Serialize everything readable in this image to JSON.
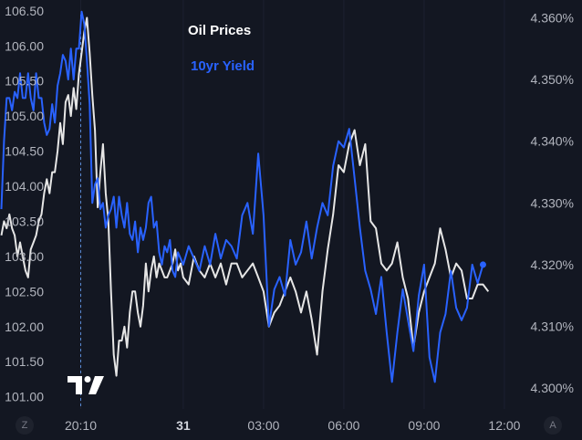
{
  "chart_data": {
    "type": "line",
    "legend": [
      {
        "name": "Oil Prices",
        "color": "#e6e6e6"
      },
      {
        "name": "10yr Yield",
        "color": "#2962ff"
      }
    ],
    "left_axis": {
      "ticks": [
        "106.50",
        "106.00",
        "105.50",
        "105.00",
        "104.50",
        "104.00",
        "103.50",
        "103.00",
        "102.50",
        "102.00",
        "101.50",
        "101.00"
      ],
      "range": [
        100.93,
        106.55
      ]
    },
    "right_axis": {
      "ticks": [
        "4.360%",
        "4.350%",
        "4.340%",
        "4.330%",
        "4.320%",
        "4.310%",
        "4.300%"
      ],
      "range": [
        4.2978,
        4.3617
      ]
    },
    "x_axis": {
      "ticks": [
        {
          "label": "20:10",
          "t": 20.1667,
          "bold": false
        },
        {
          "label": "31",
          "t": 24,
          "bold": true
        },
        {
          "label": "03:00",
          "t": 27,
          "bold": false
        },
        {
          "label": "06:00",
          "t": 30,
          "bold": false
        },
        {
          "label": "09:00",
          "t": 33,
          "bold": false
        },
        {
          "label": "12:00",
          "t": 36,
          "bold": false
        }
      ],
      "range": [
        17.15,
        38.9
      ],
      "crosshair_t": 20.1667
    },
    "series": [
      {
        "name": "Oil Prices",
        "axis": "left",
        "color": "#e6e6e6",
        "points": [
          [
            17.2,
            103.3
          ],
          [
            17.3,
            103.5
          ],
          [
            17.4,
            103.4
          ],
          [
            17.5,
            103.6
          ],
          [
            17.6,
            103.4
          ],
          [
            17.7,
            103.3
          ],
          [
            17.8,
            103.0
          ],
          [
            17.9,
            103.2
          ],
          [
            18.0,
            103.0
          ],
          [
            18.1,
            102.8
          ],
          [
            18.2,
            102.7
          ],
          [
            18.3,
            103.1
          ],
          [
            18.4,
            103.2
          ],
          [
            18.5,
            103.3
          ],
          [
            18.6,
            103.5
          ],
          [
            18.7,
            103.6
          ],
          [
            18.8,
            103.9
          ],
          [
            18.9,
            104.1
          ],
          [
            19.0,
            103.9
          ],
          [
            19.1,
            104.2
          ],
          [
            19.2,
            104.2
          ],
          [
            19.3,
            104.5
          ],
          [
            19.4,
            104.9
          ],
          [
            19.5,
            104.6
          ],
          [
            19.6,
            105.2
          ],
          [
            19.7,
            105.3
          ],
          [
            19.8,
            105.0
          ],
          [
            19.9,
            105.4
          ],
          [
            20.0,
            105.1
          ],
          [
            20.1,
            105.6
          ],
          [
            20.2,
            105.9
          ],
          [
            20.3,
            106.2
          ],
          [
            20.4,
            106.4
          ],
          [
            20.5,
            105.9
          ],
          [
            20.6,
            105.3
          ],
          [
            20.7,
            104.8
          ],
          [
            20.8,
            103.7
          ],
          [
            20.9,
            104.2
          ],
          [
            21.0,
            104.6
          ],
          [
            21.1,
            103.9
          ],
          [
            21.2,
            103.5
          ],
          [
            21.3,
            102.5
          ],
          [
            21.4,
            101.6
          ],
          [
            21.5,
            101.3
          ],
          [
            21.6,
            101.8
          ],
          [
            21.7,
            101.8
          ],
          [
            21.8,
            102.0
          ],
          [
            21.9,
            101.7
          ],
          [
            22.0,
            102.2
          ],
          [
            22.1,
            102.5
          ],
          [
            22.2,
            102.5
          ],
          [
            22.3,
            102.2
          ],
          [
            22.4,
            102.0
          ],
          [
            22.5,
            102.3
          ],
          [
            22.6,
            102.9
          ],
          [
            22.7,
            102.5
          ],
          [
            22.8,
            102.8
          ],
          [
            22.9,
            103.0
          ],
          [
            23.0,
            102.7
          ],
          [
            23.1,
            102.9
          ],
          [
            23.2,
            102.8
          ],
          [
            23.3,
            102.7
          ],
          [
            23.4,
            102.7
          ],
          [
            23.5,
            102.8
          ],
          [
            23.6,
            102.9
          ],
          [
            23.7,
            103.1
          ],
          [
            23.8,
            102.8
          ],
          [
            23.9,
            102.9
          ],
          [
            24.0,
            102.7
          ],
          [
            24.2,
            102.6
          ],
          [
            24.4,
            103.0
          ],
          [
            24.6,
            102.8
          ],
          [
            24.8,
            102.7
          ],
          [
            25.0,
            102.9
          ],
          [
            25.2,
            102.7
          ],
          [
            25.4,
            102.9
          ],
          [
            25.6,
            102.6
          ],
          [
            25.8,
            102.9
          ],
          [
            26.0,
            102.9
          ],
          [
            26.2,
            102.7
          ],
          [
            26.4,
            102.8
          ],
          [
            26.6,
            102.9
          ],
          [
            26.8,
            102.7
          ],
          [
            27.0,
            102.5
          ],
          [
            27.2,
            102.0
          ],
          [
            27.4,
            102.2
          ],
          [
            27.6,
            102.3
          ],
          [
            27.8,
            102.5
          ],
          [
            28.0,
            102.7
          ],
          [
            28.2,
            102.5
          ],
          [
            28.4,
            102.2
          ],
          [
            28.6,
            102.5
          ],
          [
            28.8,
            102.1
          ],
          [
            29.0,
            101.6
          ],
          [
            29.2,
            102.5
          ],
          [
            29.4,
            103.1
          ],
          [
            29.6,
            103.6
          ],
          [
            29.8,
            104.3
          ],
          [
            30.0,
            104.2
          ],
          [
            30.2,
            104.6
          ],
          [
            30.4,
            104.8
          ],
          [
            30.6,
            104.3
          ],
          [
            30.8,
            104.6
          ],
          [
            31.0,
            103.5
          ],
          [
            31.2,
            103.4
          ],
          [
            31.4,
            102.9
          ],
          [
            31.6,
            102.8
          ],
          [
            31.8,
            102.9
          ],
          [
            32.0,
            103.2
          ],
          [
            32.2,
            102.7
          ],
          [
            32.4,
            102.4
          ],
          [
            32.6,
            101.7
          ],
          [
            32.8,
            102.2
          ],
          [
            33.0,
            102.5
          ],
          [
            33.2,
            102.7
          ],
          [
            33.4,
            102.9
          ],
          [
            33.6,
            103.4
          ],
          [
            33.8,
            103.1
          ],
          [
            34.0,
            102.7
          ],
          [
            34.2,
            102.9
          ],
          [
            34.4,
            102.8
          ],
          [
            34.6,
            102.4
          ],
          [
            34.8,
            102.4
          ],
          [
            35.0,
            102.6
          ],
          [
            35.2,
            102.6
          ],
          [
            35.4,
            102.5
          ]
        ]
      },
      {
        "name": "10yr Yield",
        "axis": "right",
        "color": "#2962ff",
        "points": [
          [
            17.2,
            4.329
          ],
          [
            17.3,
            4.34
          ],
          [
            17.4,
            4.347
          ],
          [
            17.5,
            4.347
          ],
          [
            17.6,
            4.345
          ],
          [
            17.7,
            4.348
          ],
          [
            17.8,
            4.347
          ],
          [
            17.9,
            4.351
          ],
          [
            18.0,
            4.347
          ],
          [
            18.1,
            4.347
          ],
          [
            18.2,
            4.351
          ],
          [
            18.3,
            4.347
          ],
          [
            18.4,
            4.345
          ],
          [
            18.5,
            4.351
          ],
          [
            18.6,
            4.347
          ],
          [
            18.7,
            4.347
          ],
          [
            18.8,
            4.343
          ],
          [
            18.9,
            4.341
          ],
          [
            19.0,
            4.342
          ],
          [
            19.1,
            4.346
          ],
          [
            19.2,
            4.343
          ],
          [
            19.3,
            4.349
          ],
          [
            19.4,
            4.351
          ],
          [
            19.5,
            4.354
          ],
          [
            19.6,
            4.353
          ],
          [
            19.7,
            4.35
          ],
          [
            19.8,
            4.355
          ],
          [
            19.9,
            4.35
          ],
          [
            20.0,
            4.355
          ],
          [
            20.1,
            4.355
          ],
          [
            20.2,
            4.361
          ],
          [
            20.3,
            4.359
          ],
          [
            20.4,
            4.353
          ],
          [
            20.5,
            4.346
          ],
          [
            20.6,
            4.33
          ],
          [
            20.7,
            4.333
          ],
          [
            20.8,
            4.334
          ],
          [
            20.9,
            4.329
          ],
          [
            21.0,
            4.33
          ],
          [
            21.1,
            4.326
          ],
          [
            21.2,
            4.328
          ],
          [
            21.3,
            4.329
          ],
          [
            21.4,
            4.331
          ],
          [
            21.5,
            4.326
          ],
          [
            21.6,
            4.331
          ],
          [
            21.7,
            4.328
          ],
          [
            21.8,
            4.326
          ],
          [
            21.9,
            4.33
          ],
          [
            22.0,
            4.325
          ],
          [
            22.1,
            4.324
          ],
          [
            22.2,
            4.327
          ],
          [
            22.3,
            4.322
          ],
          [
            22.4,
            4.326
          ],
          [
            22.5,
            4.324
          ],
          [
            22.6,
            4.326
          ],
          [
            22.7,
            4.33
          ],
          [
            22.8,
            4.331
          ],
          [
            22.9,
            4.326
          ],
          [
            23.0,
            4.327
          ],
          [
            23.1,
            4.322
          ],
          [
            23.2,
            4.32
          ],
          [
            23.3,
            4.323
          ],
          [
            23.4,
            4.322
          ],
          [
            23.5,
            4.324
          ],
          [
            23.6,
            4.319
          ],
          [
            23.7,
            4.318
          ],
          [
            23.8,
            4.322
          ],
          [
            23.9,
            4.321
          ],
          [
            24.0,
            4.32
          ],
          [
            24.2,
            4.323
          ],
          [
            24.4,
            4.321
          ],
          [
            24.6,
            4.319
          ],
          [
            24.8,
            4.323
          ],
          [
            25.0,
            4.32
          ],
          [
            25.2,
            4.325
          ],
          [
            25.4,
            4.321
          ],
          [
            25.6,
            4.324
          ],
          [
            25.8,
            4.323
          ],
          [
            26.0,
            4.321
          ],
          [
            26.2,
            4.328
          ],
          [
            26.4,
            4.33
          ],
          [
            26.6,
            4.325
          ],
          [
            26.8,
            4.338
          ],
          [
            27.0,
            4.328
          ],
          [
            27.2,
            4.31
          ],
          [
            27.4,
            4.316
          ],
          [
            27.6,
            4.318
          ],
          [
            27.8,
            4.315
          ],
          [
            28.0,
            4.324
          ],
          [
            28.2,
            4.32
          ],
          [
            28.4,
            4.322
          ],
          [
            28.6,
            4.327
          ],
          [
            28.8,
            4.321
          ],
          [
            29.0,
            4.326
          ],
          [
            29.2,
            4.33
          ],
          [
            29.4,
            4.328
          ],
          [
            29.6,
            4.336
          ],
          [
            29.8,
            4.34
          ],
          [
            30.0,
            4.339
          ],
          [
            30.2,
            4.342
          ],
          [
            30.4,
            4.334
          ],
          [
            30.6,
            4.326
          ],
          [
            30.8,
            4.319
          ],
          [
            31.0,
            4.316
          ],
          [
            31.2,
            4.312
          ],
          [
            31.4,
            4.318
          ],
          [
            31.6,
            4.309
          ],
          [
            31.8,
            4.301
          ],
          [
            32.0,
            4.309
          ],
          [
            32.2,
            4.316
          ],
          [
            32.4,
            4.311
          ],
          [
            32.6,
            4.306
          ],
          [
            32.8,
            4.315
          ],
          [
            33.0,
            4.32
          ],
          [
            33.2,
            4.305
          ],
          [
            33.4,
            4.301
          ],
          [
            33.6,
            4.309
          ],
          [
            33.8,
            4.312
          ],
          [
            34.0,
            4.319
          ],
          [
            34.2,
            4.313
          ],
          [
            34.4,
            4.311
          ],
          [
            34.6,
            4.313
          ],
          [
            34.8,
            4.32
          ],
          [
            35.0,
            4.317
          ],
          [
            35.2,
            4.32
          ]
        ]
      }
    ]
  },
  "corner_buttons": {
    "left": "Z",
    "right": "A"
  }
}
